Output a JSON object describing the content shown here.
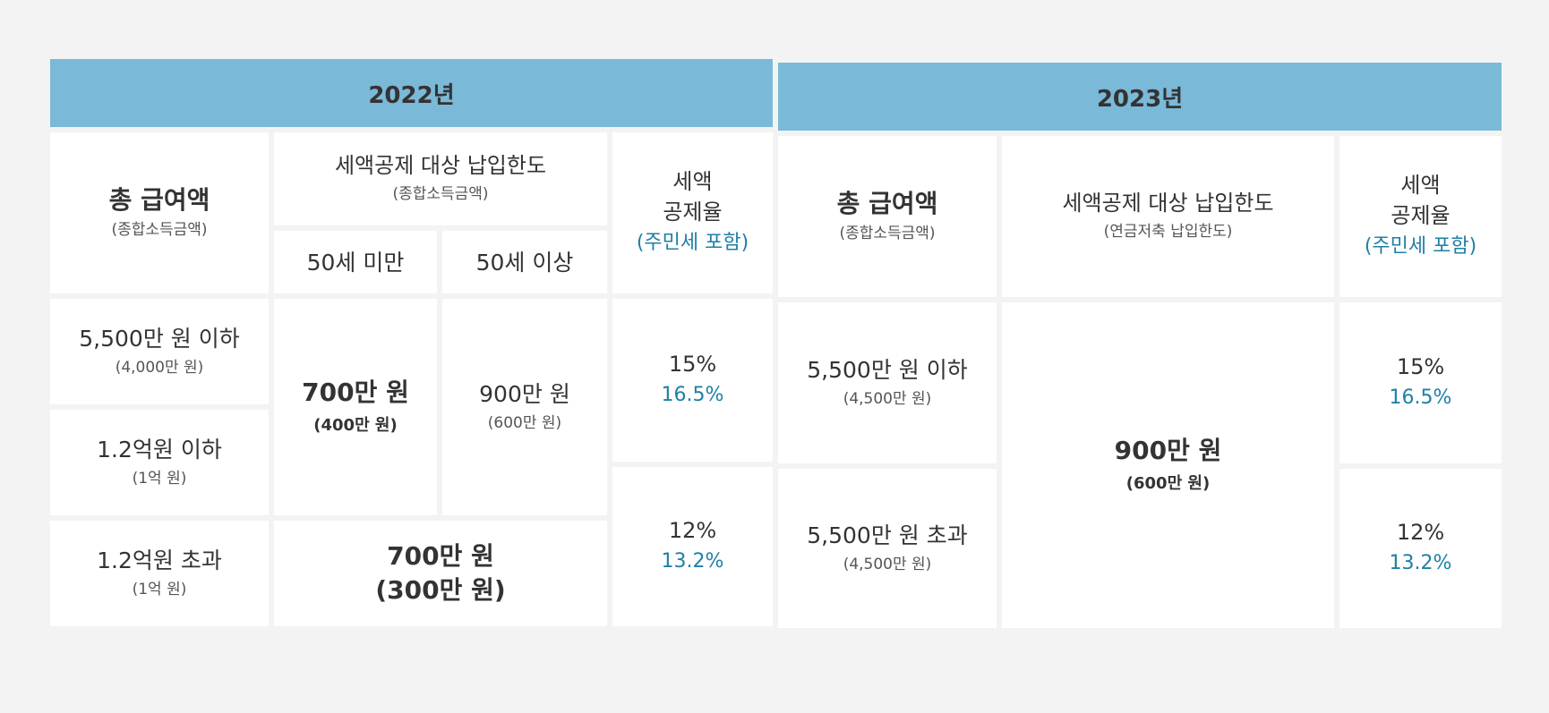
{
  "y2022": {
    "header": "2022년",
    "col_salary": {
      "title": "총 급여액",
      "sub": "(종합소득금액)"
    },
    "col_limit": {
      "title": "세액공제 대상 납입한도",
      "sub": "(종합소득금액)"
    },
    "col_under50": "50세 미만",
    "col_over50": "50세 이상",
    "col_rate": {
      "line1": "세액",
      "line2": "공제율",
      "line3": "(주민세 포함)"
    },
    "row1_salary": {
      "main": "5,500만 원 이하",
      "sub": "(4,000만 원)"
    },
    "row2_salary": {
      "main": "1.2억원 이하",
      "sub": "(1억 원)"
    },
    "row3_salary": {
      "main": "1.2억원 초과",
      "sub": "(1억 원)"
    },
    "limit_under50": {
      "main": "700만 원",
      "sub": "(400만 원)"
    },
    "limit_over50": {
      "main": "900만 원",
      "sub": "(600만 원)"
    },
    "limit_row3": {
      "main": "700만 원",
      "sub": "(300만 원)"
    },
    "rate1": {
      "base": "15%",
      "incl": "16.5%"
    },
    "rate2": {
      "base": "12%",
      "incl": "13.2%"
    }
  },
  "y2023": {
    "header": "2023년",
    "col_salary": {
      "title": "총 급여액",
      "sub": "(종합소득금액)"
    },
    "col_limit": {
      "title": "세액공제 대상 납입한도",
      "sub": "(연금저축 납입한도)"
    },
    "col_rate": {
      "line1": "세액",
      "line2": "공제율",
      "line3": "(주민세 포함)"
    },
    "row1_salary": {
      "main": "5,500만 원 이하",
      "sub": "(4,500만 원)"
    },
    "row2_salary": {
      "main": "5,500만 원 초과",
      "sub": "(4,500만 원)"
    },
    "limit": {
      "main": "900만 원",
      "sub": "(600만 원)"
    },
    "rate1": {
      "base": "15%",
      "incl": "16.5%"
    },
    "rate2": {
      "base": "12%",
      "incl": "13.2%"
    }
  },
  "colors": {
    "header_bg": "#7ab9d8",
    "accent_blue": "#1f7fa6",
    "page_bg": "#f3f3f3"
  }
}
